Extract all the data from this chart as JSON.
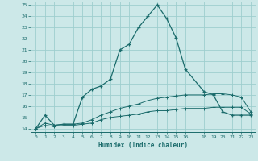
{
  "xlabel": "Humidex (Indice chaleur)",
  "bg_color": "#cce8e8",
  "grid_color": "#9ecece",
  "line_color": "#1a6b6b",
  "xlim": [
    -0.5,
    23.5
  ],
  "ylim": [
    13.7,
    25.3
  ],
  "xticks": [
    0,
    1,
    2,
    3,
    4,
    5,
    6,
    7,
    8,
    9,
    10,
    11,
    12,
    13,
    14,
    15,
    16,
    18,
    19,
    20,
    21,
    22,
    23
  ],
  "yticks": [
    14,
    15,
    16,
    17,
    18,
    19,
    20,
    21,
    22,
    23,
    24,
    25
  ],
  "line1_x": [
    0,
    1,
    2,
    3,
    4,
    5,
    6,
    7,
    8,
    9,
    10,
    11,
    12,
    13,
    14,
    15,
    16,
    18,
    19,
    20,
    21,
    22,
    23
  ],
  "line1_y": [
    14.0,
    15.2,
    14.3,
    14.4,
    14.4,
    16.8,
    17.5,
    17.8,
    18.4,
    21.0,
    21.5,
    23.0,
    24.0,
    25.0,
    23.8,
    22.1,
    19.3,
    17.3,
    17.0,
    15.5,
    15.2,
    15.2,
    15.2
  ],
  "line2_x": [
    0,
    1,
    2,
    3,
    4,
    5,
    6,
    7,
    8,
    9,
    10,
    11,
    12,
    13,
    14,
    15,
    16,
    18,
    19,
    20,
    21,
    22,
    23
  ],
  "line2_y": [
    14.0,
    14.5,
    14.3,
    14.4,
    14.4,
    14.5,
    14.8,
    15.2,
    15.5,
    15.8,
    16.0,
    16.2,
    16.5,
    16.7,
    16.8,
    16.9,
    17.0,
    17.0,
    17.1,
    17.1,
    17.0,
    16.8,
    15.5
  ],
  "line3_x": [
    0,
    1,
    2,
    3,
    4,
    5,
    6,
    7,
    8,
    9,
    10,
    11,
    12,
    13,
    14,
    15,
    16,
    18,
    19,
    20,
    21,
    22,
    23
  ],
  "line3_y": [
    14.0,
    14.3,
    14.2,
    14.3,
    14.3,
    14.4,
    14.5,
    14.8,
    15.0,
    15.1,
    15.2,
    15.3,
    15.5,
    15.6,
    15.6,
    15.7,
    15.8,
    15.8,
    15.9,
    15.9,
    15.9,
    15.9,
    15.3
  ]
}
